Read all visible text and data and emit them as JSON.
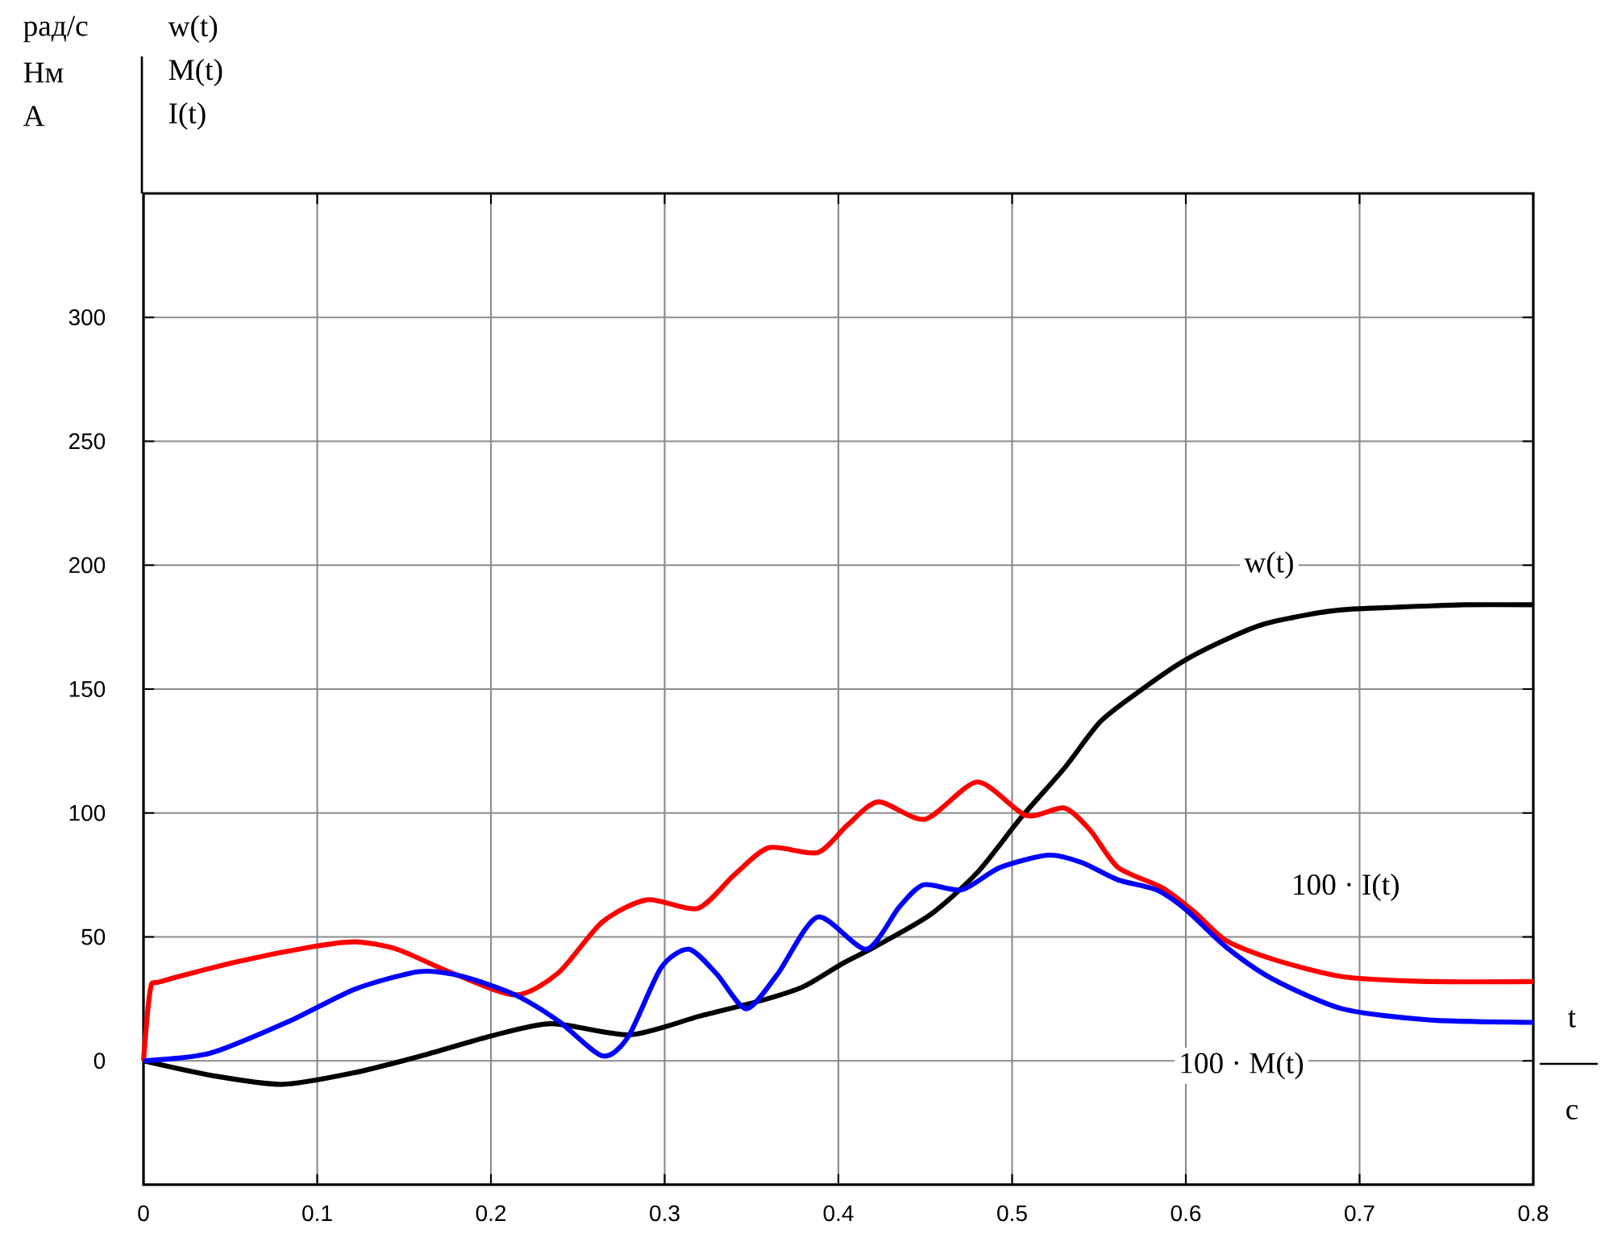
{
  "chart_data": {
    "type": "line",
    "xlabel": "t",
    "annotations": [
      "рад/с",
      "Нм",
      "А",
      "w(t)",
      "M(t)",
      "I(t)",
      "c"
    ],
    "xlim": [
      0,
      0.8
    ],
    "ylim": [
      -50,
      350
    ],
    "xticks": [
      0,
      0.1,
      0.2,
      0.3,
      0.4,
      0.5,
      0.6,
      0.7,
      0.8
    ],
    "yticks": [
      0,
      50,
      100,
      150,
      200,
      250,
      300
    ],
    "grid": true,
    "series": [
      {
        "name": "w(t)",
        "color": "#000000",
        "x": [
          0,
          0.04,
          0.08,
          0.12,
          0.16,
          0.2,
          0.235,
          0.28,
          0.32,
          0.357,
          0.38,
          0.403,
          0.421,
          0.453,
          0.48,
          0.505,
          0.53,
          0.551,
          0.575,
          0.598,
          0.62,
          0.644,
          0.67,
          0.69,
          0.72,
          0.76,
          0.8
        ],
        "values": [
          0,
          -6,
          -9.5,
          -5,
          2,
          10,
          15,
          10.5,
          18,
          24.6,
          30,
          39.5,
          46,
          59,
          76,
          98,
          118,
          137,
          150,
          161,
          169,
          176,
          180,
          182,
          183,
          184,
          184
        ]
      },
      {
        "name": "100 · I(t)",
        "color": "#ff0000",
        "x": [
          0,
          0.004,
          0.01,
          0.054,
          0.097,
          0.122,
          0.146,
          0.177,
          0.214,
          0.239,
          0.264,
          0.29,
          0.319,
          0.34,
          0.36,
          0.388,
          0.405,
          0.423,
          0.45,
          0.48,
          0.508,
          0.53,
          0.545,
          0.561,
          0.586,
          0.605,
          0.623,
          0.65,
          0.69,
          0.74,
          0.8
        ],
        "values": [
          0,
          29,
          32,
          40,
          46,
          48,
          45,
          35.6,
          26.6,
          35.6,
          56,
          65,
          61.5,
          75,
          86,
          84,
          95,
          104.5,
          97.5,
          112.5,
          99,
          102,
          93,
          78,
          70,
          60,
          48.6,
          41,
          34,
          32,
          32
        ]
      },
      {
        "name": "100 · M(t)",
        "color": "#0000ff",
        "x": [
          0,
          0.038,
          0.084,
          0.122,
          0.159,
          0.184,
          0.214,
          0.239,
          0.264,
          0.279,
          0.298,
          0.314,
          0.33,
          0.347,
          0.365,
          0.388,
          0.416,
          0.435,
          0.449,
          0.471,
          0.493,
          0.521,
          0.54,
          0.561,
          0.583,
          0.6,
          0.623,
          0.65,
          0.69,
          0.74,
          0.8
        ],
        "values": [
          0,
          3,
          16,
          29,
          36,
          34,
          26.6,
          16,
          2,
          9.7,
          37.6,
          45,
          35,
          21,
          35,
          58,
          45,
          62,
          71,
          69,
          78,
          83,
          80,
          73,
          69,
          61,
          46,
          33,
          21,
          16.5,
          15.5
        ]
      }
    ]
  }
}
